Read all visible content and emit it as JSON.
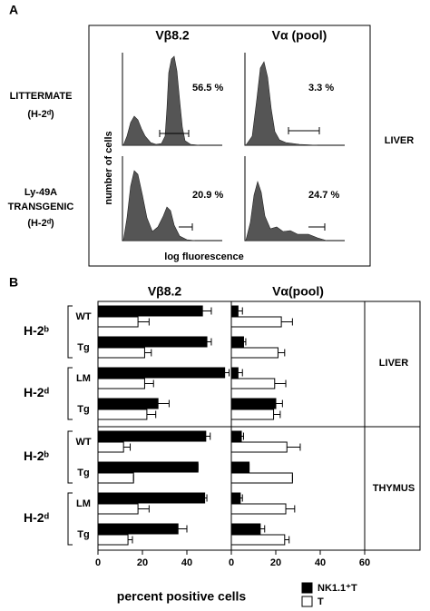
{
  "panel_a": {
    "label": "A",
    "columns": [
      "Vβ8.2",
      "Vα (pool)"
    ],
    "rows": [
      [
        "LITTERMATE",
        "(H-2ᵈ)"
      ],
      [
        "Ly-49A",
        "TRANSGENIC",
        "(H-2ᵈ)"
      ]
    ],
    "percents": [
      "56.5 %",
      "3.3 %",
      "20.9 %",
      "24.7 %"
    ],
    "ylabel": "number of cells",
    "xlabel": "log fluorescence",
    "tissue": "LIVER"
  },
  "panel_b": {
    "label": "B",
    "groups": [
      "H-2ᵇ",
      "H-2ᵈ",
      "H-2ᵇ",
      "H-2ᵈ"
    ],
    "sections": [
      "LIVER",
      "THYMUS"
    ],
    "xlabel": "percent positive cells"
  },
  "chart_data": [
    {
      "type": "bar",
      "title": "Vβ8.2",
      "categories": [
        "WT",
        "Tg",
        "LM",
        "Tg",
        "WT",
        "Tg",
        "LM",
        "Tg"
      ],
      "xlim": [
        0,
        60
      ],
      "xticks": [
        0,
        20,
        40
      ],
      "series": [
        {
          "name": "NK1.1⁺T",
          "color": "#000000",
          "values": [
            47,
            49,
            57,
            27,
            48.5,
            45,
            48,
            36
          ],
          "errors": [
            4,
            2,
            2,
            5,
            2,
            0,
            1,
            4
          ]
        },
        {
          "name": "T",
          "color": "#ffffff",
          "values": [
            18,
            21,
            21,
            22,
            11.5,
            16,
            18,
            13.5
          ],
          "errors": [
            5,
            3,
            4,
            4,
            3,
            0,
            5,
            2
          ]
        }
      ]
    },
    {
      "type": "bar",
      "title": "Vα(pool)",
      "xlim": [
        0,
        60
      ],
      "xticks": [
        0,
        20,
        40,
        60
      ],
      "series": [
        {
          "color": "#000000",
          "values": [
            3,
            5.5,
            3,
            20,
            4.5,
            8,
            4,
            13
          ],
          "errors": [
            2,
            1,
            2,
            3,
            1,
            0,
            1,
            2
          ]
        },
        {
          "color": "#ffffff",
          "values": [
            22.5,
            21,
            19.5,
            19,
            25,
            27.5,
            24.5,
            24
          ],
          "errors": [
            5,
            3,
            5,
            3,
            6,
            0,
            4,
            2
          ]
        }
      ]
    }
  ]
}
